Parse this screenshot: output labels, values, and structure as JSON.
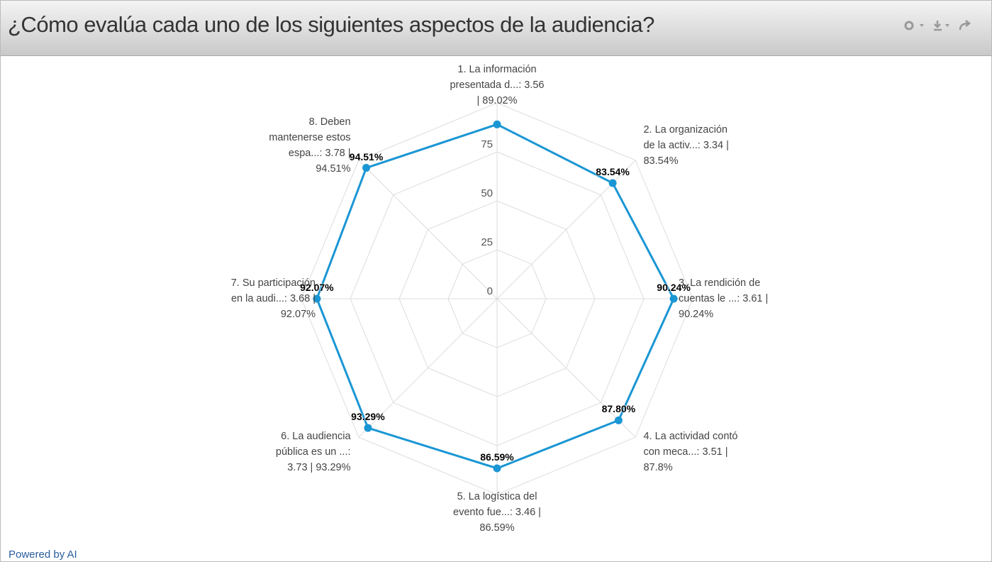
{
  "header": {
    "title": "¿Cómo evalúa cada uno de los siguientes aspectos de la audiencia?"
  },
  "chart_data": {
    "type": "radar",
    "categories": [
      "1. La información presentada d...: 3.56 | 89.02%",
      "2. La organización de la activ...: 3.34 | 83.54%",
      "3. La rendición de cuentas le ...: 3.61 | 90.24%",
      "4. La actividad contó con meca...: 3.51 | 87.8%",
      "5. La logística del evento fue...: 3.46 | 86.59%",
      "6. La audiencia pública es un ...: 3.73 | 93.29%",
      "7. Su participación en la audi...: 3.68 | 92.07%",
      "8. Deben mantenerse estos espa...: 3.78 | 94.51%"
    ],
    "values": [
      89.02,
      83.54,
      90.24,
      87.8,
      86.59,
      93.29,
      92.07,
      94.51
    ],
    "value_labels": [
      null,
      "83.54%",
      "90.24%",
      "87.80%",
      "86.59%",
      "93.29%",
      "92.07%",
      "94.51%"
    ],
    "color": "#1a96d4",
    "ylim": [
      0,
      100
    ],
    "yticks": [
      0,
      25,
      50,
      75
    ],
    "grid": true
  },
  "footer": {
    "text": "Powered by AI"
  }
}
